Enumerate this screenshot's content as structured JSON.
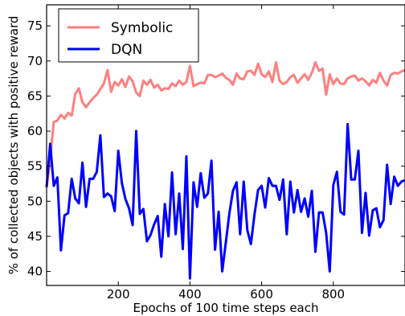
{
  "chart_data": {
    "type": "line",
    "xlabel": "Epochs of 100 time steps each",
    "ylabel": "% of collected objects with positive reward",
    "xlim": [
      0,
      1000
    ],
    "ylim": [
      38,
      78
    ],
    "xticks": [
      200,
      400,
      600,
      800
    ],
    "yticks": [
      40,
      45,
      50,
      55,
      60,
      65,
      70,
      75
    ],
    "grid": false,
    "legend_position": "top-left",
    "series": [
      {
        "name": "Symbolic",
        "color": "#ff7f7f",
        "x": [
          0,
          10,
          20,
          30,
          40,
          50,
          60,
          70,
          80,
          90,
          100,
          110,
          120,
          130,
          140,
          150,
          160,
          170,
          180,
          190,
          200,
          210,
          220,
          230,
          240,
          250,
          260,
          270,
          280,
          290,
          300,
          310,
          320,
          330,
          340,
          350,
          360,
          370,
          380,
          390,
          400,
          410,
          420,
          430,
          440,
          450,
          460,
          470,
          480,
          490,
          500,
          510,
          520,
          530,
          540,
          550,
          560,
          570,
          580,
          590,
          600,
          610,
          620,
          630,
          640,
          650,
          660,
          670,
          680,
          690,
          700,
          710,
          720,
          730,
          740,
          750,
          760,
          770,
          780,
          790,
          800,
          810,
          820,
          830,
          840,
          850,
          860,
          870,
          880,
          890,
          900,
          910,
          920,
          930,
          940,
          950,
          960,
          970,
          980,
          990,
          1000
        ],
        "values": [
          52,
          56,
          61.3,
          61.5,
          62.3,
          61.8,
          62.6,
          62.2,
          65.3,
          66.1,
          64.1,
          63.4,
          64.1,
          64.7,
          65.2,
          66,
          66.8,
          68.7,
          65.6,
          67,
          66.5,
          67.4,
          66.3,
          67.8,
          67.1,
          65.5,
          65,
          67.2,
          66.6,
          67.3,
          66.2,
          66.6,
          65.8,
          66.1,
          66,
          66.8,
          66.4,
          67.2,
          66.6,
          67,
          69.3,
          66.4,
          66.7,
          66.9,
          66.8,
          68,
          68,
          67.7,
          67.9,
          68.2,
          67.6,
          67.3,
          66.6,
          68.2,
          67.5,
          67.4,
          68.5,
          68.6,
          68,
          69.6,
          68.1,
          67.7,
          68.5,
          67,
          69.8,
          67.2,
          66.7,
          67,
          67.7,
          68,
          66.9,
          67.5,
          68.1,
          67.3,
          68.3,
          69.8,
          68.6,
          68.9,
          65.2,
          68.1,
          66.7,
          67.5,
          66.8,
          66.7,
          67.5,
          67.8,
          67.9,
          67.2,
          67.5,
          67.1,
          66.5,
          67.3,
          66.9,
          68.3,
          67.2,
          66.5,
          68,
          68.3,
          68.2,
          68.5,
          68.7
        ]
      },
      {
        "name": "DQN",
        "color": "#0000ff",
        "x": [
          0,
          10,
          20,
          30,
          40,
          50,
          60,
          70,
          80,
          90,
          100,
          110,
          120,
          130,
          140,
          150,
          160,
          170,
          180,
          190,
          200,
          210,
          220,
          230,
          240,
          250,
          260,
          270,
          280,
          290,
          300,
          310,
          320,
          330,
          340,
          350,
          360,
          370,
          380,
          390,
          400,
          410,
          420,
          430,
          440,
          450,
          460,
          470,
          480,
          490,
          500,
          510,
          520,
          530,
          540,
          550,
          560,
          570,
          580,
          590,
          600,
          610,
          620,
          630,
          640,
          650,
          660,
          670,
          680,
          690,
          700,
          710,
          720,
          730,
          740,
          750,
          760,
          770,
          780,
          790,
          800,
          810,
          820,
          830,
          840,
          850,
          860,
          870,
          880,
          890,
          900,
          910,
          920,
          930,
          940,
          950,
          960,
          970,
          980,
          990,
          1000
        ],
        "values": [
          52,
          58.2,
          52.2,
          53.4,
          43,
          48,
          48.3,
          53.2,
          50.4,
          49.7,
          55.5,
          49.2,
          53.2,
          53.2,
          54.2,
          59.4,
          50.6,
          51.1,
          50.7,
          48.6,
          57.2,
          52.6,
          50.3,
          49,
          46.6,
          60,
          48.2,
          48.9,
          44.3,
          45.2,
          46.7,
          47.9,
          42.1,
          49.6,
          45,
          54.1,
          45.3,
          51.1,
          43.2,
          56.4,
          39,
          52.7,
          49.2,
          54,
          50.5,
          51.1,
          55.8,
          43.1,
          48.5,
          40,
          44.1,
          48.3,
          51.5,
          52.7,
          45.3,
          52.8,
          45.9,
          43.9,
          48.1,
          51.6,
          52.2,
          49.1,
          53.3,
          52.2,
          52.2,
          50.2,
          53.1,
          45.3,
          52.8,
          48.4,
          51.6,
          48.5,
          50.4,
          47.8,
          51.5,
          42.8,
          48.4,
          48.4,
          45.5,
          40,
          52.3,
          54.2,
          48.5,
          48.1,
          61,
          53.1,
          53.1,
          57.2,
          45.5,
          51.2,
          45.1,
          48.7,
          49,
          46.3,
          47.3,
          55.2,
          49.6,
          53.5,
          52.2,
          52.8,
          53
        ]
      }
    ]
  }
}
